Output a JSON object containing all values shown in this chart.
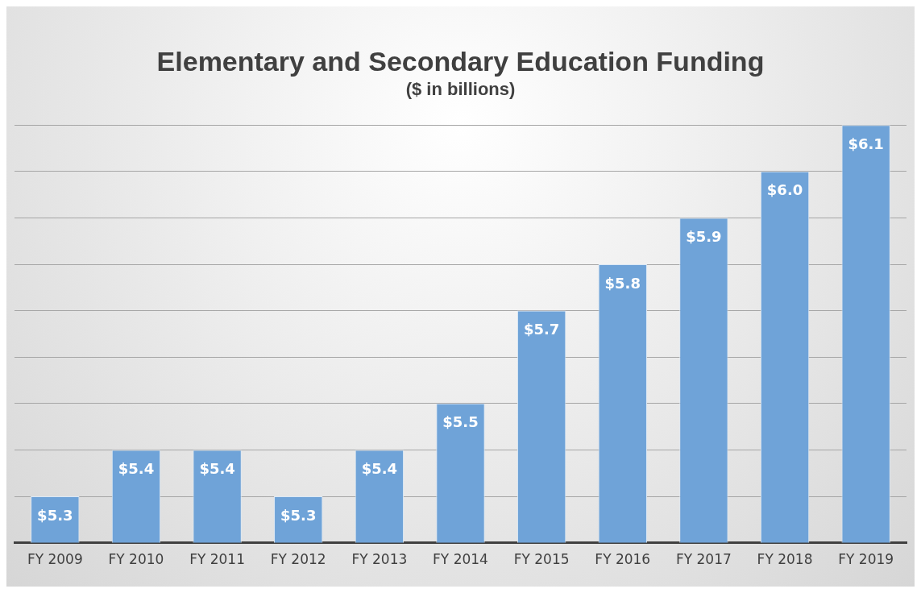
{
  "chart_data": {
    "type": "bar",
    "title": "Elementary and Secondary Education Funding",
    "subtitle": "($ in billions)",
    "categories": [
      "FY 2009",
      "FY 2010",
      "FY 2011",
      "FY 2012",
      "FY 2013",
      "FY 2014",
      "FY 2015",
      "FY 2016",
      "FY 2017",
      "FY 2018",
      "FY 2019"
    ],
    "values": [
      5.3,
      5.4,
      5.4,
      5.3,
      5.4,
      5.5,
      5.7,
      5.8,
      5.9,
      6.0,
      6.1
    ],
    "value_labels": [
      "$5.3",
      "$5.4",
      "$5.4",
      "$5.3",
      "$5.4",
      "$5.5",
      "$5.7",
      "$5.8",
      "$5.9",
      "$6.0",
      "$6.1"
    ],
    "color": "#6fa3d8",
    "grid": "y",
    "tick_labels": "x",
    "legend": false
  }
}
